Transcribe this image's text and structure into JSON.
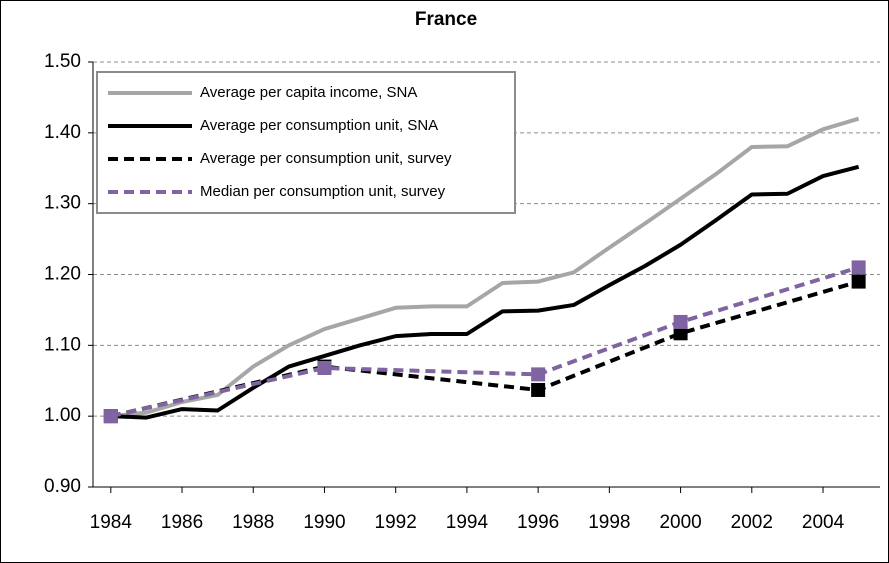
{
  "chart_data": {
    "type": "line",
    "title": "France",
    "xlim": [
      1983.5,
      2005.6
    ],
    "xticks": [
      1984,
      1986,
      1988,
      1990,
      1992,
      1994,
      1996,
      1998,
      2000,
      2002,
      2004
    ],
    "ylim": [
      0.9,
      1.5
    ],
    "yticks": [
      {
        "value": 0.9,
        "label": "0.90"
      },
      {
        "value": 1.0,
        "label": "1.00"
      },
      {
        "value": 1.1,
        "label": "1.10"
      },
      {
        "value": 1.2,
        "label": "1.20"
      },
      {
        "value": 1.3,
        "label": "1.30"
      },
      {
        "value": 1.4,
        "label": "1.40"
      },
      {
        "value": 1.5,
        "label": "1.50"
      }
    ],
    "grid": true,
    "legend": "top-left",
    "series": [
      {
        "name": "Average per capita income, SNA",
        "color": "#a6a6a6",
        "dash": false,
        "markers": false,
        "x": [
          1984,
          1985,
          1986,
          1987,
          1988,
          1989,
          1990,
          1991,
          1992,
          1993,
          1994,
          1995,
          1996,
          1997,
          1998,
          1999,
          2000,
          2001,
          2002,
          2003,
          2004,
          2005
        ],
        "values": [
          1.0,
          1.005,
          1.02,
          1.03,
          1.07,
          1.1,
          1.123,
          1.138,
          1.153,
          1.155,
          1.155,
          1.188,
          1.19,
          1.203,
          1.238,
          1.272,
          1.307,
          1.342,
          1.38,
          1.381,
          1.405,
          1.42
        ]
      },
      {
        "name": "Average per consumption unit, SNA",
        "color": "#000000",
        "dash": false,
        "markers": false,
        "x": [
          1984,
          1985,
          1986,
          1987,
          1988,
          1989,
          1990,
          1991,
          1992,
          1993,
          1994,
          1995,
          1996,
          1997,
          1998,
          1999,
          2000,
          2001,
          2002,
          2003,
          2004,
          2005
        ],
        "values": [
          1.0,
          0.998,
          1.01,
          1.008,
          1.04,
          1.07,
          1.085,
          1.1,
          1.113,
          1.116,
          1.116,
          1.148,
          1.149,
          1.157,
          1.185,
          1.212,
          1.242,
          1.277,
          1.313,
          1.314,
          1.339,
          1.352
        ]
      },
      {
        "name": "Average per consumption unit, survey",
        "color": "#000000",
        "dash": true,
        "markers": true,
        "x": [
          1984,
          1990,
          1996,
          2000,
          2005
        ],
        "values": [
          1.0,
          1.07,
          1.037,
          1.117,
          1.19
        ]
      },
      {
        "name": "Median per consumption unit, survey",
        "color": "#8064a2",
        "dash": true,
        "markers": true,
        "x": [
          1984,
          1990,
          1996,
          2000,
          2005
        ],
        "values": [
          1.0,
          1.068,
          1.059,
          1.133,
          1.21
        ]
      }
    ]
  }
}
